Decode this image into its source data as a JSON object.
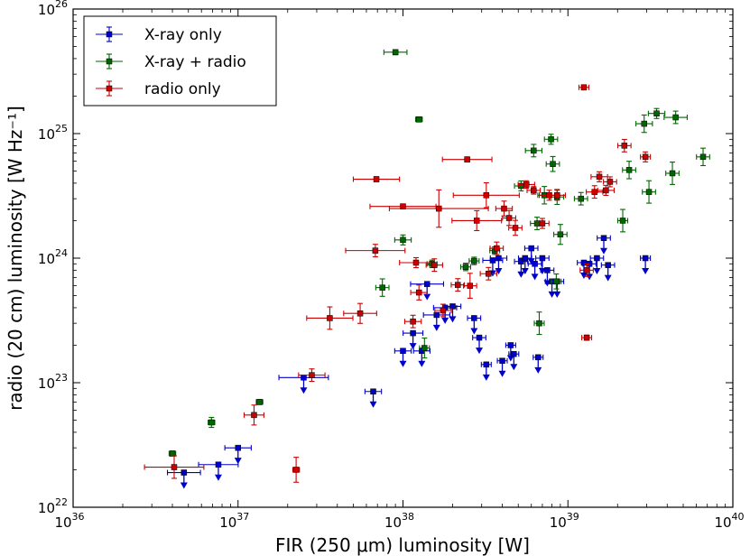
{
  "chart_data": {
    "type": "scatter",
    "title": "",
    "xlabel": "FIR (250 μm) luminosity [W]",
    "ylabel": "radio (20 cm) luminosity [W Hz⁻¹]",
    "xscale": "log",
    "yscale": "log",
    "xlim": [
      1e+36,
      1e+40
    ],
    "ylim": [
      1e+22,
      1e+26
    ],
    "x_ticks": [
      {
        "value": 1e+36,
        "base": "10",
        "exp": "36"
      },
      {
        "value": 1e+37,
        "base": "10",
        "exp": "37"
      },
      {
        "value": 1e+38,
        "base": "10",
        "exp": "38"
      },
      {
        "value": 1e+39,
        "base": "10",
        "exp": "39"
      },
      {
        "value": 1e+40,
        "base": "10",
        "exp": "40"
      }
    ],
    "y_ticks": [
      {
        "value": 1e+22,
        "base": "10",
        "exp": "22"
      },
      {
        "value": 1e+23,
        "base": "10",
        "exp": "23"
      },
      {
        "value": 1e+24,
        "base": "10",
        "exp": "24"
      },
      {
        "value": 1e+25,
        "base": "10",
        "exp": "25"
      },
      {
        "value": 1e+26,
        "base": "10",
        "exp": "26"
      }
    ],
    "legend_position": "top-left",
    "series": [
      {
        "name": "X-ray only",
        "color": "#0000cc",
        "marker": "square",
        "upper_limit": true,
        "points": [
          {
            "x": 4.7e+36,
            "y": 1.9e+22,
            "xe": 0.1,
            "ye": 0.02
          },
          {
            "x": 7.6e+36,
            "y": 2.2e+22,
            "xe": 0.12,
            "ye": 0.02
          },
          {
            "x": 1e+37,
            "y": 3e+22,
            "xe": 0.08,
            "ye": 0.02
          },
          {
            "x": 2.5e+37,
            "y": 1.1e+23,
            "xe": 0.15,
            "ye": 0.02
          },
          {
            "x": 6.6e+37,
            "y": 8.5e+22,
            "xe": 0.05,
            "ye": 0.02
          },
          {
            "x": 1e+38,
            "y": 1.8e+23,
            "xe": 0.05,
            "ye": 0.02
          },
          {
            "x": 1.15e+38,
            "y": 2.5e+23,
            "xe": 0.06,
            "ye": 0.02
          },
          {
            "x": 1.3e+38,
            "y": 1.8e+23,
            "xe": 0.05,
            "ye": 0.02
          },
          {
            "x": 1.4e+38,
            "y": 6.2e+23,
            "xe": 0.1,
            "ye": 0.02
          },
          {
            "x": 1.6e+38,
            "y": 3.5e+23,
            "xe": 0.08,
            "ye": 0.02
          },
          {
            "x": 1.8e+38,
            "y": 4e+23,
            "xe": 0.07,
            "ye": 0.02
          },
          {
            "x": 2e+38,
            "y": 4.1e+23,
            "xe": 0.05,
            "ye": 0.02
          },
          {
            "x": 2.7e+38,
            "y": 3.3e+23,
            "xe": 0.04,
            "ye": 0.02
          },
          {
            "x": 2.9e+38,
            "y": 2.3e+23,
            "xe": 0.04,
            "ye": 0.02
          },
          {
            "x": 3.2e+38,
            "y": 1.4e+23,
            "xe": 0.03,
            "ye": 0.02
          },
          {
            "x": 3.5e+38,
            "y": 9.6e+23,
            "xe": 0.06,
            "ye": 0.02
          },
          {
            "x": 3.8e+38,
            "y": 1e+24,
            "xe": 0.05,
            "ye": 0.02
          },
          {
            "x": 4e+38,
            "y": 1.5e+23,
            "xe": 0.03,
            "ye": 0.02
          },
          {
            "x": 4.5e+38,
            "y": 2e+23,
            "xe": 0.03,
            "ye": 0.02
          },
          {
            "x": 4.7e+38,
            "y": 1.7e+23,
            "xe": 0.03,
            "ye": 0.02
          },
          {
            "x": 5.2e+38,
            "y": 9.4e+23,
            "xe": 0.04,
            "ye": 0.02
          },
          {
            "x": 5.5e+38,
            "y": 1e+24,
            "xe": 0.04,
            "ye": 0.02
          },
          {
            "x": 6e+38,
            "y": 1.2e+24,
            "xe": 0.04,
            "ye": 0.02
          },
          {
            "x": 6.3e+38,
            "y": 9e+23,
            "xe": 0.04,
            "ye": 0.02
          },
          {
            "x": 6.6e+38,
            "y": 1.6e+23,
            "xe": 0.03,
            "ye": 0.02
          },
          {
            "x": 7e+38,
            "y": 1e+24,
            "xe": 0.04,
            "ye": 0.02
          },
          {
            "x": 7.5e+38,
            "y": 8e+23,
            "xe": 0.04,
            "ye": 0.02
          },
          {
            "x": 8e+38,
            "y": 6.5e+23,
            "xe": 0.04,
            "ye": 0.02
          },
          {
            "x": 8.6e+38,
            "y": 6.5e+23,
            "xe": 0.04,
            "ye": 0.02
          },
          {
            "x": 1.25e+39,
            "y": 9.2e+23,
            "xe": 0.04,
            "ye": 0.02
          },
          {
            "x": 1.35e+39,
            "y": 9e+23,
            "xe": 0.04,
            "ye": 0.02
          },
          {
            "x": 1.5e+39,
            "y": 1e+24,
            "xe": 0.04,
            "ye": 0.02
          },
          {
            "x": 1.65e+39,
            "y": 1.45e+24,
            "xe": 0.04,
            "ye": 0.02
          },
          {
            "x": 1.75e+39,
            "y": 8.8e+23,
            "xe": 0.04,
            "ye": 0.02
          },
          {
            "x": 2.95e+39,
            "y": 1e+24,
            "xe": 0.03,
            "ye": 0.02
          }
        ]
      },
      {
        "name": "X-ray + radio",
        "color": "#006600",
        "marker": "square",
        "upper_limit": false,
        "points": [
          {
            "x": 4e+36,
            "y": 2.7e+22,
            "xe": 0.02,
            "ye": 0.02
          },
          {
            "x": 6.9e+36,
            "y": 4.8e+22,
            "xe": 0.02,
            "ye": 0.04
          },
          {
            "x": 1.35e+37,
            "y": 7e+22,
            "xe": 0.02,
            "ye": 0.02
          },
          {
            "x": 7.5e+37,
            "y": 5.8e+23,
            "xe": 0.04,
            "ye": 0.07
          },
          {
            "x": 9e+37,
            "y": 4.5e+25,
            "xe": 0.07,
            "ye": 0.02
          },
          {
            "x": 1e+38,
            "y": 1.4e+24,
            "xe": 0.05,
            "ye": 0.04
          },
          {
            "x": 1.25e+38,
            "y": 1.3e+25,
            "xe": 0.02,
            "ye": 0.02
          },
          {
            "x": 1.35e+38,
            "y": 1.9e+23,
            "xe": 0.03,
            "ye": 0.08
          },
          {
            "x": 1.5e+38,
            "y": 9e+23,
            "xe": 0.03,
            "ye": 0.03
          },
          {
            "x": 2.4e+38,
            "y": 8.5e+23,
            "xe": 0.03,
            "ye": 0.03
          },
          {
            "x": 2.7e+38,
            "y": 9.5e+23,
            "xe": 0.03,
            "ye": 0.03
          },
          {
            "x": 3.6e+38,
            "y": 1.15e+24,
            "xe": 0.03,
            "ye": 0.03
          },
          {
            "x": 5.2e+38,
            "y": 3.8e+24,
            "xe": 0.04,
            "ye": 0.04
          },
          {
            "x": 6.2e+38,
            "y": 7.3e+24,
            "xe": 0.05,
            "ye": 0.05
          },
          {
            "x": 6.5e+38,
            "y": 1.9e+24,
            "xe": 0.04,
            "ye": 0.05
          },
          {
            "x": 6.7e+38,
            "y": 3e+23,
            "xe": 0.03,
            "ye": 0.09
          },
          {
            "x": 7.2e+38,
            "y": 3.2e+24,
            "xe": 0.04,
            "ye": 0.07
          },
          {
            "x": 7.9e+38,
            "y": 9e+24,
            "xe": 0.04,
            "ye": 0.04
          },
          {
            "x": 8.1e+38,
            "y": 5.7e+24,
            "xe": 0.04,
            "ye": 0.06
          },
          {
            "x": 8.5e+38,
            "y": 6.5e+23,
            "xe": 0.03,
            "ye": 0.06
          },
          {
            "x": 8.6e+38,
            "y": 3.1e+24,
            "xe": 0.04,
            "ye": 0.06
          },
          {
            "x": 9e+38,
            "y": 1.55e+24,
            "xe": 0.04,
            "ye": 0.08
          },
          {
            "x": 1.2e+39,
            "y": 3e+24,
            "xe": 0.04,
            "ye": 0.05
          },
          {
            "x": 2.15e+39,
            "y": 2e+24,
            "xe": 0.03,
            "ye": 0.09
          },
          {
            "x": 2.35e+39,
            "y": 5.1e+24,
            "xe": 0.04,
            "ye": 0.07
          },
          {
            "x": 2.9e+39,
            "y": 1.2e+25,
            "xe": 0.05,
            "ye": 0.07
          },
          {
            "x": 3.1e+39,
            "y": 3.4e+24,
            "xe": 0.04,
            "ye": 0.09
          },
          {
            "x": 3.45e+39,
            "y": 1.45e+25,
            "xe": 0.05,
            "ye": 0.04
          },
          {
            "x": 4.3e+39,
            "y": 4.8e+24,
            "xe": 0.04,
            "ye": 0.09
          },
          {
            "x": 4.5e+39,
            "y": 1.35e+25,
            "xe": 0.07,
            "ye": 0.05
          },
          {
            "x": 6.6e+39,
            "y": 6.5e+24,
            "xe": 0.04,
            "ye": 0.07
          }
        ]
      },
      {
        "name": "radio only",
        "color": "#cc0000",
        "marker": "square",
        "upper_limit": false,
        "points": [
          {
            "x": 4.1e+36,
            "y": 2.1e+22,
            "xe": 0.18,
            "ye": 0.09
          },
          {
            "x": 1.25e+37,
            "y": 5.5e+22,
            "xe": 0.06,
            "ye": 0.08
          },
          {
            "x": 2.25e+37,
            "y": 2e+22,
            "xe": 0.02,
            "ye": 0.1
          },
          {
            "x": 2.8e+37,
            "y": 1.15e+23,
            "xe": 0.08,
            "ye": 0.05
          },
          {
            "x": 3.6e+37,
            "y": 3.3e+23,
            "xe": 0.14,
            "ye": 0.09
          },
          {
            "x": 5.5e+37,
            "y": 3.6e+23,
            "xe": 0.1,
            "ye": 0.08
          },
          {
            "x": 6.8e+37,
            "y": 1.15e+24,
            "xe": 0.18,
            "ye": 0.05
          },
          {
            "x": 6.9e+37,
            "y": 4.3e+24,
            "xe": 0.14,
            "ye": 0.02
          },
          {
            "x": 1e+38,
            "y": 2.6e+24,
            "xe": 0.2,
            "ye": 0.02
          },
          {
            "x": 1.15e+38,
            "y": 3.1e+23,
            "xe": 0.05,
            "ye": 0.05
          },
          {
            "x": 1.2e+38,
            "y": 9.2e+23,
            "xe": 0.1,
            "ye": 0.04
          },
          {
            "x": 1.25e+38,
            "y": 5.3e+23,
            "xe": 0.05,
            "ye": 0.06
          },
          {
            "x": 1.65e+38,
            "y": 2.5e+24,
            "xe": 0.3,
            "ye": 0.15
          },
          {
            "x": 1.55e+38,
            "y": 8.8e+23,
            "xe": 0.05,
            "ye": 0.05
          },
          {
            "x": 1.75e+38,
            "y": 3.8e+23,
            "xe": 0.05,
            "ye": 0.05
          },
          {
            "x": 2.15e+38,
            "y": 6.1e+23,
            "xe": 0.04,
            "ye": 0.05
          },
          {
            "x": 2.45e+38,
            "y": 6.2e+24,
            "xe": 0.15,
            "ye": 0.02
          },
          {
            "x": 2.55e+38,
            "y": 6e+23,
            "xe": 0.04,
            "ye": 0.1
          },
          {
            "x": 2.8e+38,
            "y": 2e+24,
            "xe": 0.15,
            "ye": 0.08
          },
          {
            "x": 3.2e+38,
            "y": 3.2e+24,
            "xe": 0.2,
            "ye": 0.1
          },
          {
            "x": 3.3e+38,
            "y": 7.5e+23,
            "xe": 0.05,
            "ye": 0.05
          },
          {
            "x": 3.7e+38,
            "y": 1.2e+24,
            "xe": 0.04,
            "ye": 0.05
          },
          {
            "x": 4.1e+38,
            "y": 2.5e+24,
            "xe": 0.05,
            "ye": 0.06
          },
          {
            "x": 4.4e+38,
            "y": 2.1e+24,
            "xe": 0.04,
            "ye": 0.06
          },
          {
            "x": 4.8e+38,
            "y": 1.75e+24,
            "xe": 0.04,
            "ye": 0.06
          },
          {
            "x": 5.6e+38,
            "y": 3.9e+24,
            "xe": 0.05,
            "ye": 0.03
          },
          {
            "x": 6.2e+38,
            "y": 3.5e+24,
            "xe": 0.04,
            "ye": 0.03
          },
          {
            "x": 7e+38,
            "y": 1.9e+24,
            "xe": 0.04,
            "ye": 0.04
          },
          {
            "x": 7.7e+38,
            "y": 3.2e+24,
            "xe": 0.06,
            "ye": 0.04
          },
          {
            "x": 8.6e+38,
            "y": 3.2e+24,
            "xe": 0.05,
            "ye": 0.04
          },
          {
            "x": 1.25e+39,
            "y": 2.35e+25,
            "xe": 0.03,
            "ye": 0.02
          },
          {
            "x": 1.3e+39,
            "y": 2.3e+23,
            "xe": 0.03,
            "ye": 0.02
          },
          {
            "x": 1.3e+39,
            "y": 8e+23,
            "xe": 0.04,
            "ye": 0.05
          },
          {
            "x": 1.45e+39,
            "y": 3.4e+24,
            "xe": 0.05,
            "ye": 0.05
          },
          {
            "x": 1.55e+39,
            "y": 4.5e+24,
            "xe": 0.05,
            "ye": 0.04
          },
          {
            "x": 1.7e+39,
            "y": 3.5e+24,
            "xe": 0.05,
            "ye": 0.04
          },
          {
            "x": 1.8e+39,
            "y": 4.1e+24,
            "xe": 0.04,
            "ye": 0.04
          },
          {
            "x": 2.2e+39,
            "y": 8e+24,
            "xe": 0.04,
            "ye": 0.05
          },
          {
            "x": 2.95e+39,
            "y": 6.5e+24,
            "xe": 0.03,
            "ye": 0.04
          }
        ]
      }
    ]
  }
}
